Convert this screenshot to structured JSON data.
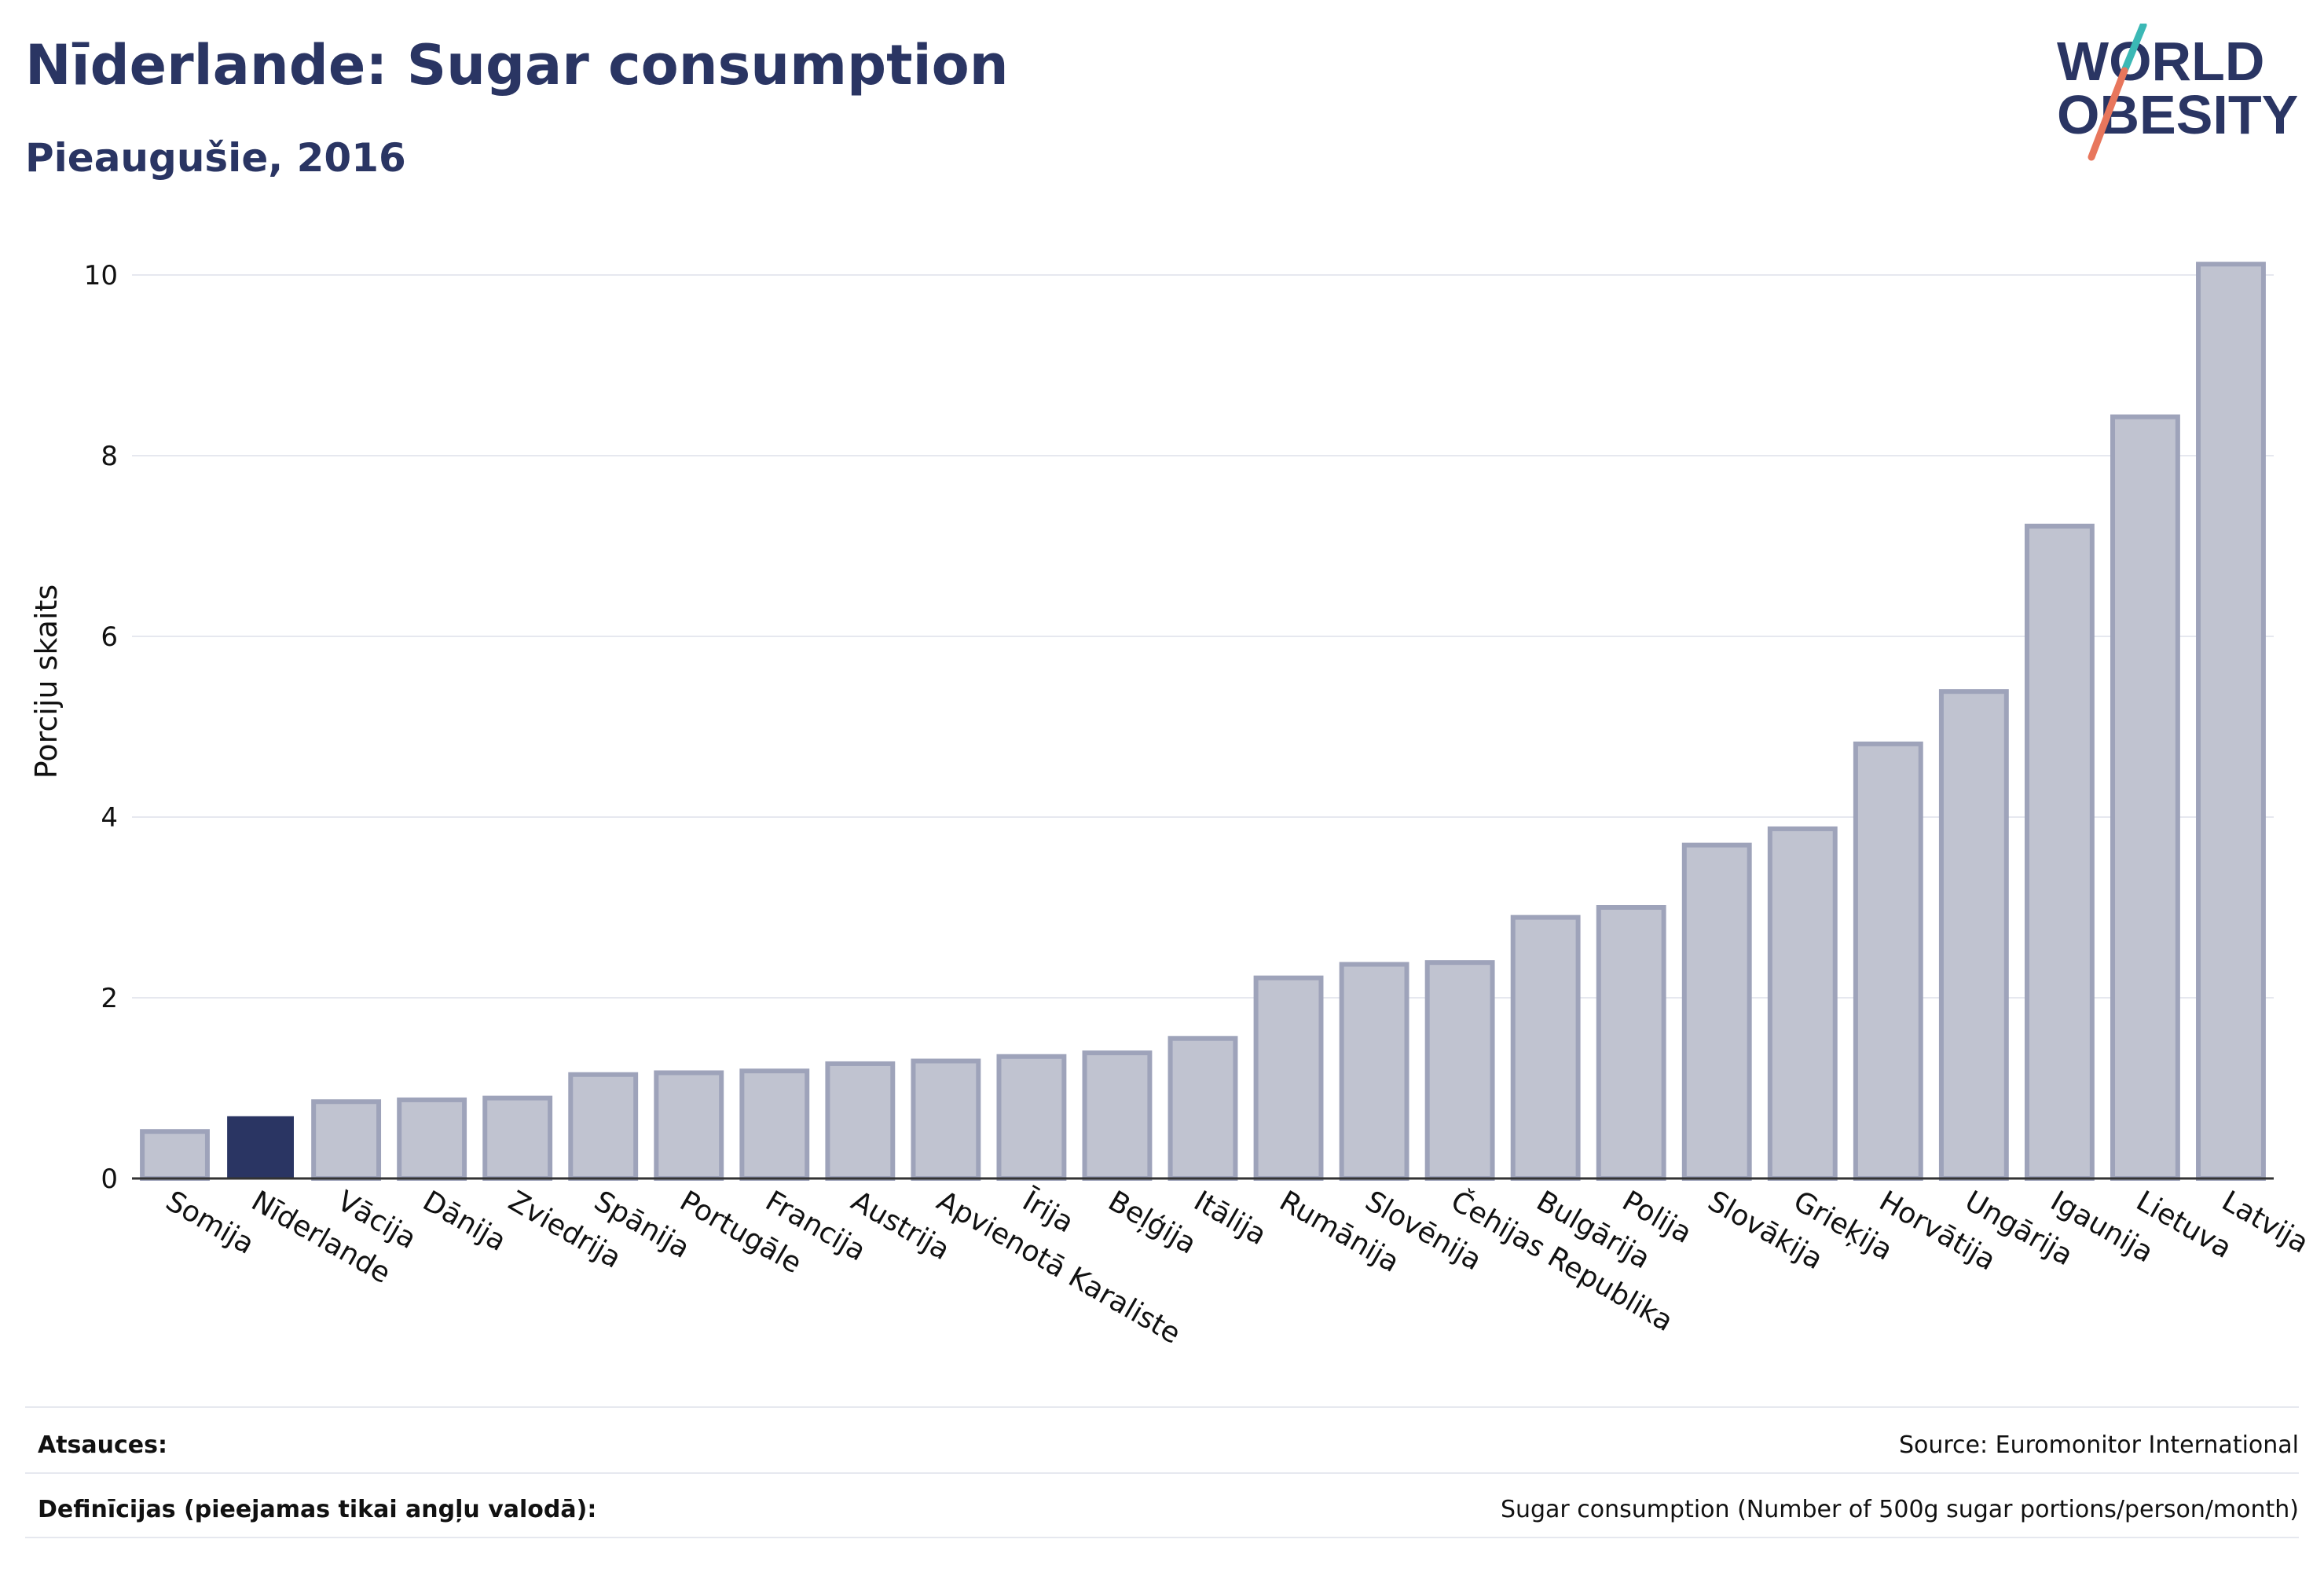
{
  "header": {
    "title": "Nīderlande: Sugar consumption",
    "subtitle": "Pieaugušie, 2016"
  },
  "logo": {
    "line1": "WORLD",
    "line2": "OBESITY",
    "slash_colors": [
      "#3bb8b5",
      "#e8765c"
    ]
  },
  "colors": {
    "highlight": "#2a3563",
    "bar_fill": "#c0c3d0",
    "bar_stroke": "#9ea3ba",
    "grid": "#e6e8ef",
    "text": "#111111"
  },
  "chart_data": {
    "type": "bar",
    "ylabel": "Porciju skaits",
    "ylim": [
      0,
      10.5
    ],
    "yticks": [
      0,
      2,
      4,
      6,
      8,
      10
    ],
    "grid": true,
    "highlight": "Nīderlande",
    "categories": [
      "Somija",
      "Nīderlande",
      "Vācija",
      "Dānija",
      "Zviedrija",
      "Spānija",
      "Portugāle",
      "Francija",
      "Austrija",
      "Apvienotā Karaliste",
      "Īrija",
      "Beļģija",
      "Itālija",
      "Rumānija",
      "Slovēnija",
      "Čehijas Republika",
      "Bulgārija",
      "Polija",
      "Slovākija",
      "Grieķija",
      "Horvātija",
      "Ungārija",
      "Igaunija",
      "Lietuva",
      "Latvija"
    ],
    "values": [
      0.52,
      0.68,
      0.85,
      0.87,
      0.89,
      1.15,
      1.17,
      1.19,
      1.27,
      1.3,
      1.35,
      1.39,
      1.55,
      2.22,
      2.37,
      2.39,
      2.89,
      3.0,
      3.69,
      3.87,
      4.81,
      5.39,
      7.22,
      8.43,
      10.12
    ]
  },
  "footer": {
    "sources_label": "Atsauces:",
    "sources_value": "Source: Euromonitor International",
    "definitions_label": "Definīcijas (pieejamas tikai angļu valodā):",
    "definitions_value": "Sugar consumption (Number of 500g sugar portions/person/month)"
  }
}
